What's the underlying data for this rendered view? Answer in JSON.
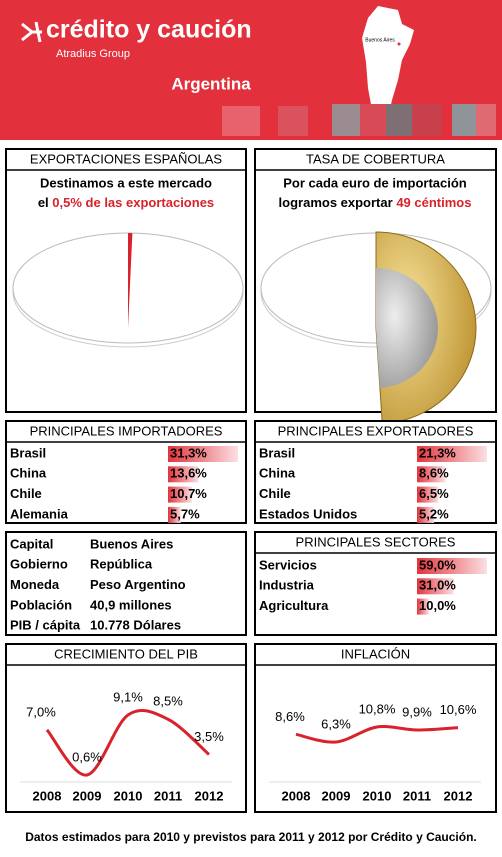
{
  "header": {
    "brand": "crédito y caución",
    "group": "Atradius Group",
    "country": "Argentina",
    "map_label": "Buenos Aires"
  },
  "exportaciones": {
    "title": "EXPORTACIONES ESPAÑOLAS",
    "line1": "Destinamos a este mercado",
    "line2": "el",
    "highlight": "0,5% de las exportaciones",
    "value": 0.5
  },
  "cobertura": {
    "title": "TASA DE COBERTURA",
    "line1": "Por cada euro de importación",
    "line2": "logramos exportar",
    "highlight": "49 céntimos",
    "value": 49
  },
  "importadores": {
    "title": "PRINCIPALES IMPORTADORES",
    "rows": [
      {
        "name": "Brasil",
        "value": 31.3,
        "label": "31,3%"
      },
      {
        "name": "China",
        "value": 13.6,
        "label": "13,6%"
      },
      {
        "name": "Chile",
        "value": 10.7,
        "label": "10,7%"
      },
      {
        "name": "Alemania",
        "value": 5.7,
        "label": "5,7%"
      }
    ]
  },
  "exportadores": {
    "title": "PRINCIPALES EXPORTADORES",
    "rows": [
      {
        "name": "Brasil",
        "value": 21.3,
        "label": "21,3%"
      },
      {
        "name": "China",
        "value": 8.6,
        "label": "8,6%"
      },
      {
        "name": "Chile",
        "value": 6.5,
        "label": "6,5%"
      },
      {
        "name": "Estados Unidos",
        "value": 5.2,
        "label": "5,2%"
      }
    ]
  },
  "info": {
    "rows": [
      [
        "Capital",
        "Buenos Aires"
      ],
      [
        "Gobierno",
        "República"
      ],
      [
        "Moneda",
        "Peso Argentino"
      ],
      [
        "Población",
        "40,9 millones"
      ],
      [
        "PIB / cápita",
        "10.778 Dólares"
      ]
    ]
  },
  "sectores": {
    "title": "PRINCIPALES SECTORES",
    "rows": [
      {
        "name": "Servicios",
        "value": 59.0,
        "label": "59,0%"
      },
      {
        "name": "Industria",
        "value": 31.0,
        "label": "31,0%"
      },
      {
        "name": "Agricultura",
        "value": 10.0,
        "label": "10,0%"
      }
    ]
  },
  "pib": {
    "title": "CRECIMIENTO DEL PIB",
    "years": [
      "2008",
      "2009",
      "2010",
      "2011",
      "2012"
    ],
    "values": [
      7.0,
      0.6,
      9.1,
      8.5,
      3.5
    ],
    "value_labels": [
      "7,0%",
      "0,6%",
      "9,1%",
      "8,5%",
      "3,5%"
    ]
  },
  "inflacion": {
    "title": "INFLACIÓN",
    "years": [
      "2008",
      "2009",
      "2010",
      "2011",
      "2012"
    ],
    "values": [
      8.6,
      6.3,
      10.8,
      9.9,
      10.6
    ],
    "value_labels": [
      "8,6%",
      "6,3%",
      "10,8%",
      "9,9%",
      "10,6%"
    ]
  },
  "footer": "Datos estimados para 2010 y previstos para 2011  y 2012 por Crédito y Caución."
}
